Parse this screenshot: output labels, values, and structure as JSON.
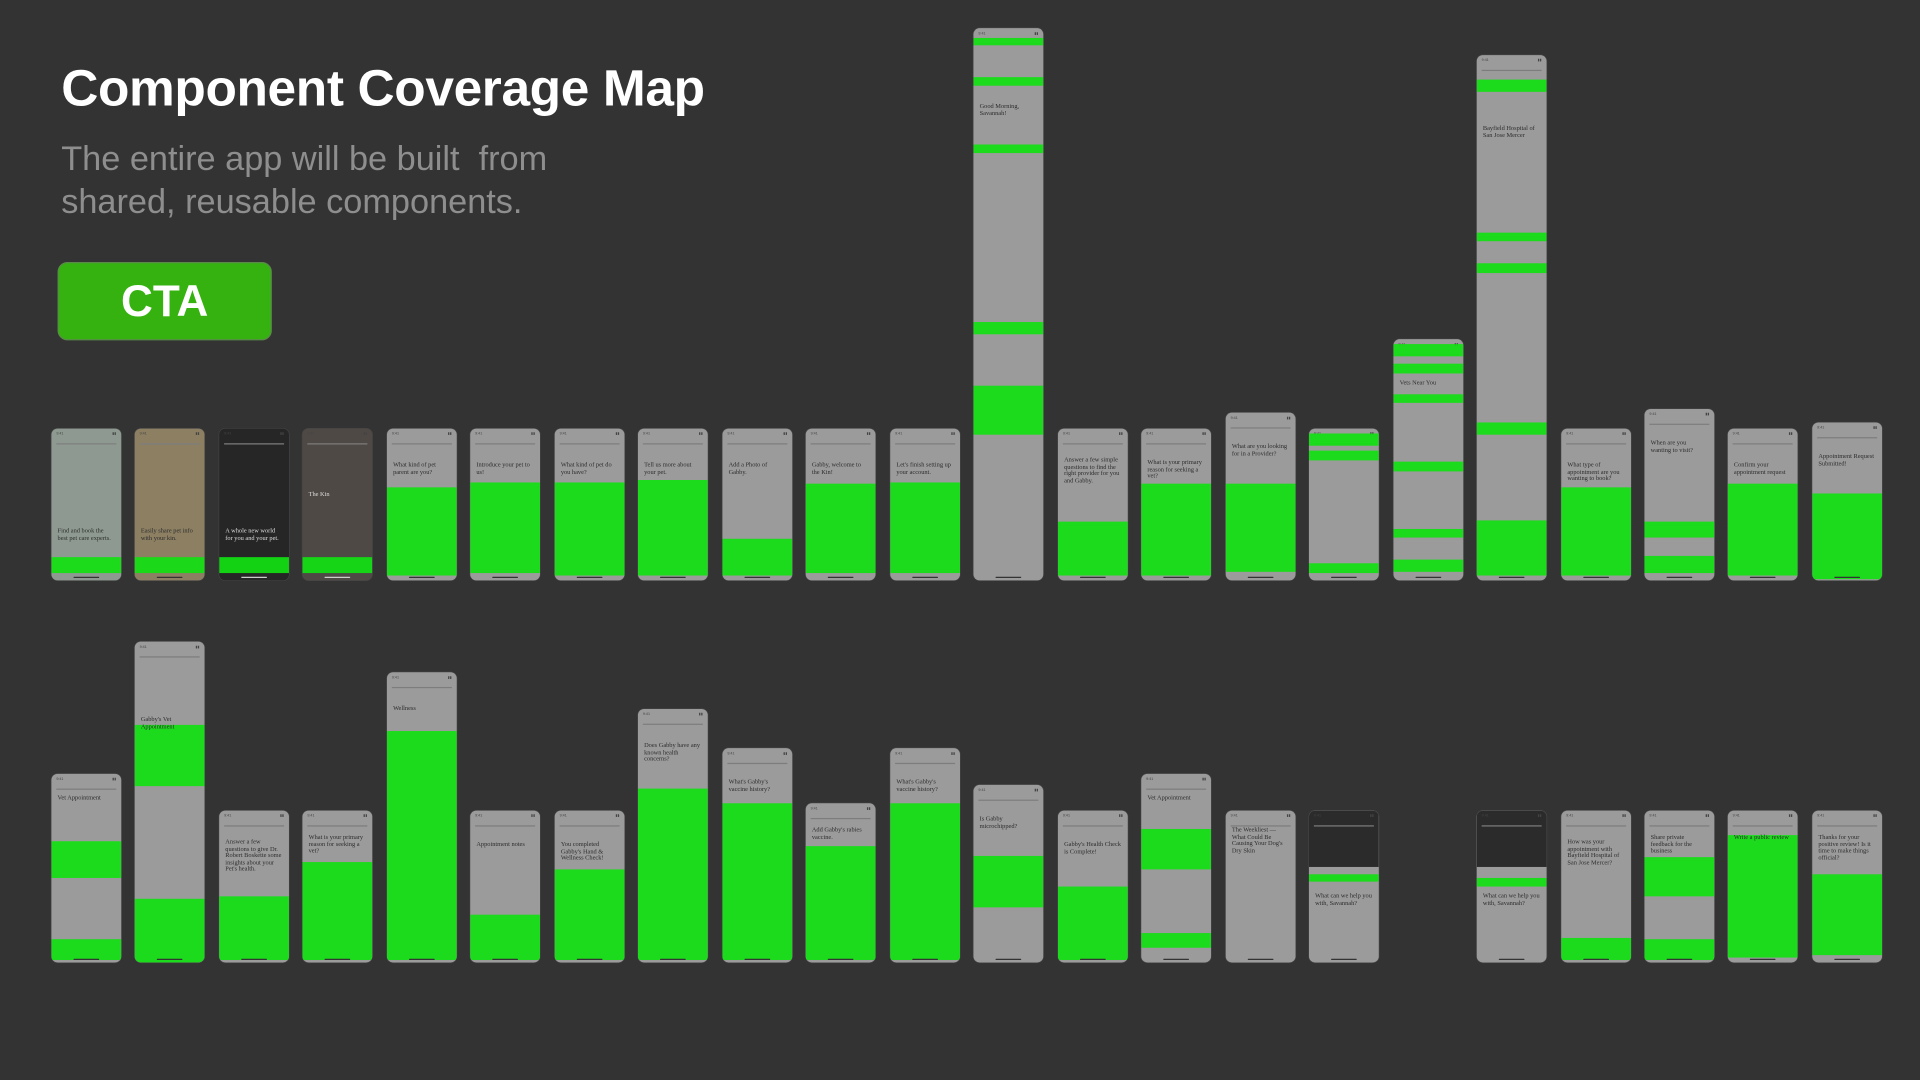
{
  "header": {
    "title": "Component Coverage Map",
    "subtitle_lines": [
      "The entire app will be built  from",
      "shared, reusable components."
    ],
    "cta_label": "CTA"
  },
  "colors": {
    "background": "#333333",
    "coverage_green": "#12e012",
    "cta_green": "#35b20f",
    "screen_gray": "#9b9b9b"
  },
  "status_time": "9:41",
  "rows": [
    {
      "screens": [
        {
          "heading": "Find and book the best pet care experts."
        },
        {
          "heading": "Easily share pet info with your kin."
        },
        {
          "heading": "A whole new world for you and your pet."
        },
        {
          "heading": "The Kin"
        },
        {
          "heading": "What kind of pet parent are you?"
        },
        {
          "heading": "Introduce your pet to us!"
        },
        {
          "heading": "What kind of pet do you have?"
        },
        {
          "heading": "Tell us more about your pet."
        },
        {
          "heading": "Add a Photo of Gabby."
        },
        {
          "heading": "Gabby, welcome to the Kin!"
        },
        {
          "heading": "Let's finish setting up your account."
        },
        {
          "heading": "Good Morning, Savannah!"
        },
        {
          "heading": "Answer a few simple questions to find the right provider for you and Gabby."
        },
        {
          "heading": "What is your primary reason for seeking a vet?"
        },
        {
          "heading": "What are you looking for in a Provider?"
        },
        {
          "heading": ""
        },
        {
          "heading": "Vets Near You"
        },
        {
          "heading": "Bayfield Hospital of San Jose Mercer"
        },
        {
          "heading": "What type of appointment are you wanting to book?"
        },
        {
          "heading": "When are you wanting to visit?"
        },
        {
          "heading": "Confirm your appointment request"
        },
        {
          "heading": "Appointment Request Submitted!"
        }
      ]
    },
    {
      "screens": [
        {
          "heading": "Vet Appointment"
        },
        {
          "heading": "Gabby's Vet Appointment"
        },
        {
          "heading": "Answer a few questions to give Dr. Robert Boskette some insights about your Pet's health."
        },
        {
          "heading": "What is your primary reason for seeking a vet?"
        },
        {
          "heading": "Wellness"
        },
        {
          "heading": "Appointment notes"
        },
        {
          "heading": "You completed Gabby's Hand & Wellness Check!"
        },
        {
          "heading": "Does Gabby have any known health concerns?"
        },
        {
          "heading": "What's Gabby's vaccine history?"
        },
        {
          "heading": "Add Gabby's rabies vaccine."
        },
        {
          "heading": "What's Gabby's vaccine history?"
        },
        {
          "heading": "Is Gabby microchipped?"
        },
        {
          "heading": "Gabby's Health Check is Complete!"
        },
        {
          "heading": "Vet Appointment"
        },
        {
          "heading": "The Weekliest — What Could Be Causing Your Dog's Dry Skin"
        },
        {
          "heading": "What can we help you with, Savannah?"
        },
        {
          "heading": "What can we help you with, Savannah?"
        },
        {
          "heading": "How was your appointment with Bayfield Hospital of San Jose Mercer?"
        },
        {
          "heading": "Share private feedback for the business"
        },
        {
          "heading": "Write a public review"
        },
        {
          "heading": "Thanks for your positive review! Is it time to make things official?"
        }
      ]
    }
  ]
}
